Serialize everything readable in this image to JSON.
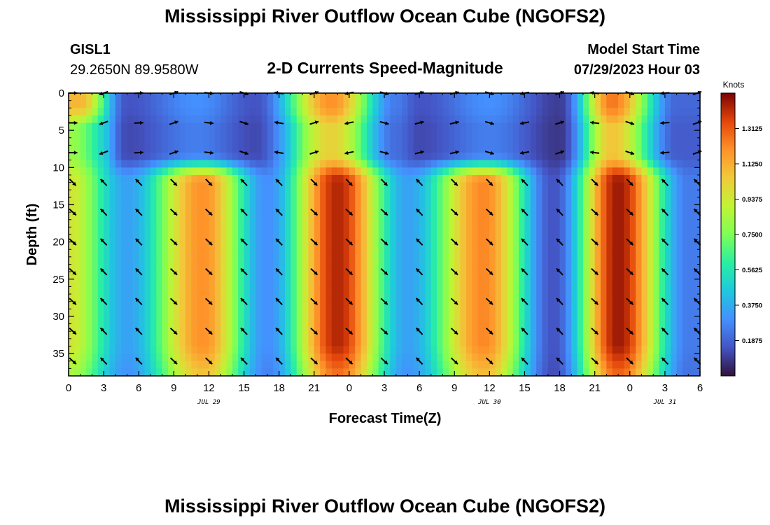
{
  "header": {
    "title": "Mississippi River Outflow Ocean Cube (NGOFS2)",
    "station_id": "GISL1",
    "station_coords": "29.2650N  89.9580W",
    "subtitle": "2-D Currents Speed-Magnitude",
    "model_start_label": "Model Start Time",
    "model_start_value": "07/29/2023 Hour 03"
  },
  "footer": {
    "title": "Mississippi River Outflow Ocean Cube (NGOFS2)"
  },
  "chart_data": {
    "type": "heatmap",
    "title": "2-D Currents Speed-Magnitude",
    "xlabel": "Forecast Time(Z)",
    "ylabel": "Depth (ft)",
    "x_range_hours": [
      0,
      54
    ],
    "y_range_ft": [
      0,
      38
    ],
    "x_ticks": [
      {
        "hour": 0,
        "label": "0"
      },
      {
        "hour": 3,
        "label": "3"
      },
      {
        "hour": 6,
        "label": "6"
      },
      {
        "hour": 9,
        "label": "9"
      },
      {
        "hour": 12,
        "label": "12"
      },
      {
        "hour": 15,
        "label": "15"
      },
      {
        "hour": 18,
        "label": "18"
      },
      {
        "hour": 21,
        "label": "21"
      },
      {
        "hour": 24,
        "label": "0"
      },
      {
        "hour": 27,
        "label": "3"
      },
      {
        "hour": 30,
        "label": "6"
      },
      {
        "hour": 33,
        "label": "9"
      },
      {
        "hour": 36,
        "label": "12"
      },
      {
        "hour": 39,
        "label": "15"
      },
      {
        "hour": 42,
        "label": "18"
      },
      {
        "hour": 45,
        "label": "21"
      },
      {
        "hour": 48,
        "label": "0"
      },
      {
        "hour": 51,
        "label": "3"
      },
      {
        "hour": 54,
        "label": "6"
      }
    ],
    "date_labels": [
      {
        "hour": 12,
        "label": "JUL 29"
      },
      {
        "hour": 36,
        "label": "JUL 30"
      },
      {
        "hour": 51,
        "label": "JUL 31"
      }
    ],
    "y_ticks": [
      {
        "depth": 0,
        "label": "0"
      },
      {
        "depth": 5,
        "label": "5"
      },
      {
        "depth": 10,
        "label": "10"
      },
      {
        "depth": 15,
        "label": "15"
      },
      {
        "depth": 20,
        "label": "20"
      },
      {
        "depth": 25,
        "label": "25"
      },
      {
        "depth": 30,
        "label": "30"
      },
      {
        "depth": 35,
        "label": "35"
      }
    ],
    "colorbar": {
      "units": "Knots",
      "range": [
        0.0,
        1.5
      ],
      "ticks": [
        {
          "value": 1.3125,
          "label": "1.3125"
        },
        {
          "value": 1.125,
          "label": "1.1250"
        },
        {
          "value": 0.9375,
          "label": "0.9375"
        },
        {
          "value": 0.75,
          "label": "0.7500"
        },
        {
          "value": 0.5625,
          "label": "0.5625"
        },
        {
          "value": 0.375,
          "label": "0.3750"
        },
        {
          "value": 0.1875,
          "label": "0.1875"
        }
      ]
    },
    "surface_speed_peaks_knots": [
      {
        "hour": 1,
        "value": 1.1
      },
      {
        "hour": 5,
        "value": 0.15
      },
      {
        "hour": 11,
        "value": 0.3
      },
      {
        "hour": 16,
        "value": 0.15
      },
      {
        "hour": 22.5,
        "value": 1.2
      },
      {
        "hour": 28,
        "value": 0.25
      },
      {
        "hour": 30,
        "value": 0.15
      },
      {
        "hour": 36,
        "value": 0.3
      },
      {
        "hour": 42,
        "value": 0.1
      },
      {
        "hour": 46.5,
        "value": 1.25
      },
      {
        "hour": 52,
        "value": 0.2
      }
    ],
    "subsurface_speed_peaks_knots": [
      {
        "hour": 0,
        "value": 0.95
      },
      {
        "hour": 5,
        "value": 0.35
      },
      {
        "hour": 11.5,
        "value": 1.2
      },
      {
        "hour": 17,
        "value": 0.3
      },
      {
        "hour": 23,
        "value": 1.42
      },
      {
        "hour": 29,
        "value": 0.35
      },
      {
        "hour": 35.5,
        "value": 1.22
      },
      {
        "hour": 41.5,
        "value": 0.15
      },
      {
        "hour": 47,
        "value": 1.45
      },
      {
        "hour": 53,
        "value": 0.25
      }
    ],
    "vector_depths_ft": [
      0,
      4,
      8,
      12,
      16,
      20,
      24,
      28,
      32,
      36
    ],
    "vector_hours": [
      0,
      3,
      6,
      9,
      12,
      15,
      18,
      21,
      24,
      27,
      30,
      33,
      36,
      39,
      42,
      45,
      48,
      51,
      54
    ]
  }
}
